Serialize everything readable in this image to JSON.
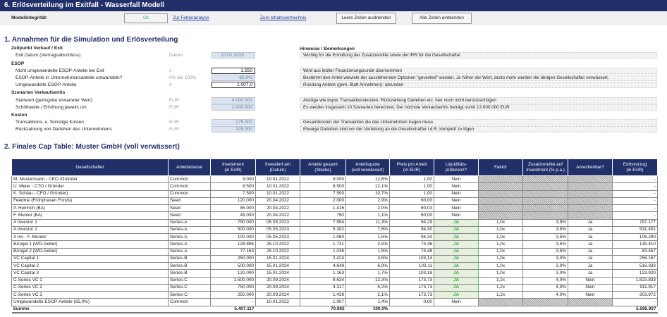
{
  "title": "6. Erlösverteilung im Exitfall - Wasserfall Modell",
  "topbar": {
    "integrity_label": "Modellintegrität:",
    "integrity_value": "Ok",
    "link_errors": "Zur Fehleranalyse",
    "link_toc": "Zum Inhaltsverzeichnis",
    "btn_hide": "Leere Zeilen ausblenden",
    "btn_show": "Alle Zeilen einblenden"
  },
  "section1": {
    "title": "1. Annahmen für die Simulation und Erlösverteilung",
    "notes_header": "Hinweise / Bemerkungen",
    "groups": {
      "exit": "Zeitpunkt Verkauf / Exit",
      "esop": "ESOP",
      "scen": "Szenarien Verkaufserlös",
      "costs": "Kosten"
    },
    "rows": [
      {
        "label": "Exit Datum (Vertragsabschluss)",
        "unit": "Datum",
        "value": "10.02.2025",
        "note": "Wichtig für die Ermittlung der Zusatzrendite sowie der IRR für die Gesellschafter"
      },
      {
        "label": "Nicht umgewandelte ESOP-Anteile bei Exit",
        "unit": "#",
        "value": "1.550",
        "note": "Wird aus letzter Finanzierungsrunde übernommen"
      },
      {
        "label": "ESOP-Anteile in Unternehmensanteile umwandeln?",
        "unit": "0% bis 100%",
        "value": "65,0%",
        "note": "Bestimmt den Anteil wieviele der ausstehenden Optionen \"gevested\" werden. Je höher der Wert, desto mehr werden die übrigen Gesellschafter verwässert."
      },
      {
        "label": "Umgewandelte ESOP-Anteile",
        "unit": "#",
        "value": "1.007,0",
        "note": "Rundung Anteile (gem. Blatt Annahmen): abrunden"
      },
      {
        "label": "Startwert (geringster erwarteter Wert)",
        "unit": "EUR",
        "value": "4.000.000",
        "note": "Abzüge wie bspw. Transaktionskosten, Rückzahlung Darlehen etc. hier noch nicht berücksichtigen"
      },
      {
        "label": "Schrittweite / Erhöhung jeweils um",
        "unit": "EUR",
        "value": "1.000.000",
        "note": "Es werden insgesamt 10 Szenarien berechnet. Der höchste Verkaufserlös beträgt somit 13.000.000 EUR"
      },
      {
        "label": "Transaktions- u. Sonstige Kosten",
        "unit": "EUR",
        "value": "175.000",
        "note": "Gesamtkosten der Transaktion die das Unternehmen tragen muss"
      },
      {
        "label": "Rückzahlung von Darlehen des Unternehmens",
        "unit": "EUR",
        "value": "325.000",
        "note": "Etwaige Darlehen sind vor der Verteilung an die Gesellschafter i.d.R. komplett zu tilgen"
      }
    ]
  },
  "section2": {
    "title": "2. Finales Cap Table: Muster GmbH (voll verwässert)",
    "headers": [
      "Gesellschafter",
      "Anteilsklasse",
      "Investment\n(in EUR)",
      "Investiert am\n(Datum)",
      "Anteile gesamt\n(Stücke)",
      "Anteilsquote\n(voll verwässert)",
      "Preis pro Anteil\n(in EUR)",
      "Liquiditäts-\npräferenz?",
      "Faktor",
      "Zusatzrendite auf\nInvestment (% p.a.)",
      "Anrechenbar?",
      "Erlösvorzug\n(in EUR)"
    ],
    "rows": [
      [
        "M. Mustermann - CEO /Gründer",
        "Common",
        "9.000",
        "10.01.2022",
        "9.000",
        "12,8%",
        "1,00",
        "Nein",
        "",
        "",
        "",
        "-"
      ],
      [
        "U. Meier - CTO / Gründer",
        "Common",
        "8.500",
        "10.01.2022",
        "8.500",
        "12,1%",
        "1,00",
        "Nein",
        "",
        "",
        "",
        "-"
      ],
      [
        "K. Schlau - CFO / Gründer)",
        "Common",
        "7.500",
        "10.01.2022",
        "7.500",
        "10,7%",
        "1,00",
        "Nein",
        "",
        "",
        "",
        "-"
      ],
      [
        "Feedme (Frühphasen Fonds)",
        "Seed",
        "120.000",
        "20.04.2022",
        "2.000",
        "2,9%",
        "60,00",
        "Nein",
        "",
        "",
        "",
        "-"
      ],
      [
        "P. Heinrich (BA)",
        "Seed",
        "85.000",
        "20.04.2022",
        "1.416",
        "2,0%",
        "60,03",
        "Nein",
        "",
        "",
        "",
        "-"
      ],
      [
        "F. Munter (BA)",
        "Seed",
        "45.000",
        "20.04.2022",
        "750",
        "1,1%",
        "60,00",
        "Nein",
        "",
        "",
        "",
        "-"
      ],
      [
        "A Investor 1",
        "Series-A",
        "750.000",
        "05.05.2023",
        "7.954",
        "11,3%",
        "94,29",
        "JA",
        "1,0x",
        "3,5%",
        "Ja",
        "797.177"
      ],
      [
        "A Investor 2",
        "Series-A",
        "500.000",
        "05.05.2023",
        "5.302",
        "7,6%",
        "94,30",
        "JA",
        "1,0x",
        "3,5%",
        "Ja",
        "531.451"
      ],
      [
        "A Inv - F. Munter",
        "Series-A",
        "100.000",
        "05.05.2023",
        "1.060",
        "1,5%",
        "94,34",
        "JA",
        "1,0x",
        "3,5%",
        "Ja",
        "106.290"
      ],
      [
        "BAngel 1 (WD-Geber)",
        "Series-A",
        "128.896",
        "25.10.2022",
        "1.731",
        "2,5%",
        "74,46",
        "JA",
        "1,0x",
        "3,5%",
        "Ja",
        "139.410"
      ],
      [
        "BAngel 2 (WD-Geber)",
        "Series-A",
        "77.163",
        "25.10.2022",
        "1.036",
        "1,5%",
        "74,48",
        "JA",
        "1,0x",
        "3,5%",
        "Ja",
        "83.457"
      ],
      [
        "VC Capital 1",
        "Series-B",
        "250.000",
        "15.01.2024",
        "2.424",
        "3,5%",
        "103,14",
        "JA",
        "1,0x",
        "3,0%",
        "Ja",
        "258.167"
      ],
      [
        "VC Capital 2",
        "Series-B",
        "500.000",
        "15.01.2024",
        "4.849",
        "6,9%",
        "103,11",
        "JA",
        "1,0x",
        "3,0%",
        "Ja",
        "516.333"
      ],
      [
        "VC Capital 3",
        "Series-B",
        "120.000",
        "15.01.2024",
        "1.163",
        "1,7%",
        "103,18",
        "JA",
        "1,0x",
        "3,0%",
        "Ja",
        "123.920"
      ],
      [
        "C-Series VC 1",
        "Series-C",
        "1.500.000",
        "20.09.2024",
        "8.634",
        "12,3%",
        "173,73",
        "JA",
        "1,2x",
        "4,0%",
        "Nein",
        "1.823.833"
      ],
      [
        "C-Series VC 2",
        "Series-C",
        "750.000",
        "20.09.2024",
        "4.317",
        "6,2%",
        "173,73",
        "JA",
        "1,2x",
        "4,0%",
        "Nein",
        "911.917"
      ],
      [
        "C-Series VC 3",
        "Series-C",
        "250.000",
        "20.09.2024",
        "1.439",
        "2,1%",
        "173,73",
        "JA",
        "1,2x",
        "4,0%",
        "Nein",
        "303.972"
      ],
      [
        "Umgewandelte ESOP-Anteile (65,0%)",
        "Common",
        "-",
        "10.01.2022",
        "1.007",
        "1,4%",
        "0,00",
        "Nein",
        "",
        "",
        "",
        "-"
      ]
    ],
    "total": {
      "label": "Summe",
      "investment": "5.407.117",
      "shares": "70.082",
      "quota": "100,0%",
      "preference": "5.595.927"
    }
  },
  "colors": {
    "header_bg": "#22306a",
    "input_bg": "#dbe4f0",
    "ja_green": "#2aa84a"
  }
}
